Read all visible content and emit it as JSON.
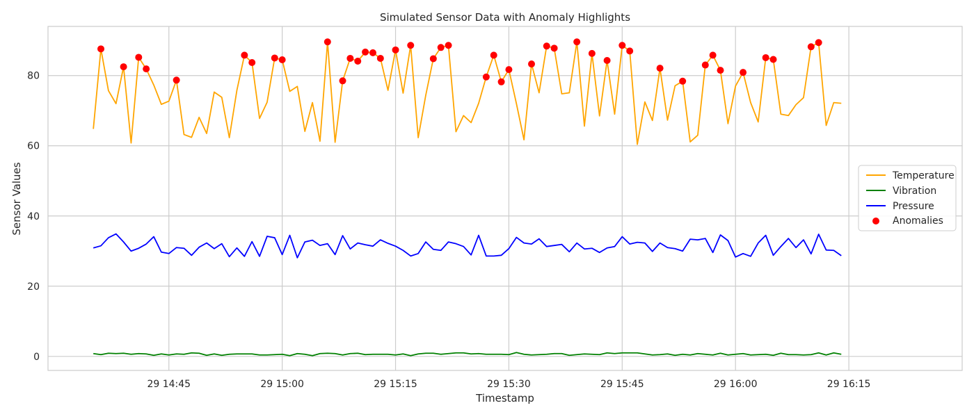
{
  "chart_data": {
    "type": "line",
    "title": "Simulated Sensor Data with Anomaly Highlights",
    "xlabel": "Timestamp",
    "ylabel": "Sensor Values",
    "x_start": "29 14:35",
    "x_step_minutes": 1,
    "x_range": [
      "29 14:29",
      "29 16:30"
    ],
    "ylim": [
      -4,
      94
    ],
    "grid": true,
    "legend_position": "center-right",
    "x_ticks": [
      {
        "label": "29 14:45",
        "minutes": 10
      },
      {
        "label": "29 15:00",
        "minutes": 25
      },
      {
        "label": "29 15:15",
        "minutes": 40
      },
      {
        "label": "29 15:30",
        "minutes": 55
      },
      {
        "label": "29 15:45",
        "minutes": 70
      },
      {
        "label": "29 16:00",
        "minutes": 85
      },
      {
        "label": "29 16:15",
        "minutes": 100
      }
    ],
    "y_ticks": [
      0,
      20,
      40,
      60,
      80
    ],
    "series": [
      {
        "name": "Temperature",
        "color": "#ffa500",
        "values": [
          64.8,
          87.6,
          75.7,
          72.0,
          82.5,
          60.8,
          85.2,
          81.9,
          77.3,
          71.8,
          72.7,
          78.7,
          63.2,
          62.4,
          68.1,
          63.5,
          75.3,
          73.8,
          62.3,
          75.8,
          85.8,
          83.7,
          67.8,
          72.4,
          85.0,
          84.5,
          75.5,
          76.9,
          64.1,
          72.3,
          61.3,
          89.6,
          61.0,
          78.5,
          84.9,
          84.1,
          86.7,
          86.5,
          84.9,
          75.8,
          87.3,
          75.0,
          88.6,
          62.3,
          74.4,
          84.8,
          88.0,
          88.6,
          64.0,
          68.6,
          66.6,
          72.1,
          79.6,
          85.8,
          78.2,
          81.7,
          72.0,
          61.7,
          83.3,
          75.1,
          88.4,
          87.8,
          74.8,
          75.1,
          89.6,
          65.6,
          86.3,
          68.5,
          84.3,
          69.0,
          88.6,
          87.0,
          60.4,
          72.5,
          67.2,
          82.1,
          67.3,
          77.1,
          78.4,
          61.1,
          63.0,
          83.0,
          85.8,
          81.5,
          66.3,
          77.0,
          80.9,
          72.3,
          66.8,
          85.1,
          84.6,
          69.0,
          68.6,
          71.7,
          73.7,
          88.2,
          89.4,
          65.8,
          72.3,
          72.1
        ]
      },
      {
        "name": "Vibration",
        "color": "#008000",
        "values": [
          0.8,
          0.5,
          0.9,
          0.8,
          0.9,
          0.6,
          0.8,
          0.7,
          0.3,
          0.7,
          0.4,
          0.7,
          0.6,
          1.0,
          0.9,
          0.3,
          0.7,
          0.3,
          0.6,
          0.7,
          0.7,
          0.7,
          0.4,
          0.4,
          0.5,
          0.6,
          0.2,
          0.8,
          0.6,
          0.2,
          0.8,
          0.9,
          0.8,
          0.4,
          0.8,
          0.9,
          0.5,
          0.6,
          0.6,
          0.6,
          0.4,
          0.7,
          0.2,
          0.7,
          0.9,
          0.9,
          0.6,
          0.8,
          1.0,
          1.0,
          0.7,
          0.8,
          0.6,
          0.6,
          0.6,
          0.5,
          1.1,
          0.6,
          0.4,
          0.5,
          0.6,
          0.8,
          0.8,
          0.3,
          0.5,
          0.7,
          0.6,
          0.5,
          1.0,
          0.8,
          1.0,
          1.0,
          1.0,
          0.7,
          0.4,
          0.5,
          0.7,
          0.3,
          0.6,
          0.4,
          0.8,
          0.6,
          0.4,
          0.9,
          0.4,
          0.6,
          0.8,
          0.4,
          0.5,
          0.6,
          0.3,
          0.9,
          0.5,
          0.5,
          0.4,
          0.5,
          1.0,
          0.4,
          1.0,
          0.6
        ]
      },
      {
        "name": "Pressure",
        "color": "#0000ff",
        "values": [
          30.9,
          31.5,
          33.8,
          34.9,
          32.6,
          30.0,
          30.8,
          32.0,
          34.1,
          29.7,
          29.3,
          31.0,
          30.8,
          28.8,
          31.1,
          32.3,
          30.7,
          32.1,
          28.4,
          30.9,
          28.5,
          32.7,
          28.5,
          34.2,
          33.8,
          29.0,
          34.5,
          28.1,
          32.6,
          33.1,
          31.6,
          32.1,
          29.0,
          34.4,
          30.6,
          32.3,
          31.8,
          31.4,
          33.2,
          32.2,
          31.4,
          30.2,
          28.6,
          29.3,
          32.6,
          30.5,
          30.2,
          32.6,
          32.1,
          31.3,
          28.9,
          34.5,
          28.6,
          28.6,
          28.8,
          30.7,
          33.9,
          32.3,
          32.0,
          33.5,
          31.3,
          31.6,
          31.9,
          29.8,
          32.3,
          30.6,
          30.8,
          29.6,
          30.9,
          31.3,
          34.1,
          32.0,
          32.5,
          32.3,
          29.9,
          32.3,
          31.0,
          30.7,
          30.0,
          33.4,
          33.2,
          33.6,
          29.6,
          34.6,
          33.0,
          28.3,
          29.3,
          28.5,
          32.3,
          34.5,
          28.8,
          31.3,
          33.6,
          31.0,
          33.2,
          29.2,
          34.8,
          30.3,
          30.2,
          28.7
        ]
      }
    ],
    "anomalies": {
      "name": "Anomalies",
      "color": "#ff0000",
      "points": [
        {
          "i": 1,
          "y": 87.6
        },
        {
          "i": 4,
          "y": 82.5
        },
        {
          "i": 6,
          "y": 85.2
        },
        {
          "i": 7,
          "y": 81.9
        },
        {
          "i": 11,
          "y": 78.7
        },
        {
          "i": 20,
          "y": 85.8
        },
        {
          "i": 21,
          "y": 83.7
        },
        {
          "i": 24,
          "y": 85.0
        },
        {
          "i": 25,
          "y": 84.5
        },
        {
          "i": 31,
          "y": 89.6
        },
        {
          "i": 33,
          "y": 78.5
        },
        {
          "i": 34,
          "y": 84.9
        },
        {
          "i": 35,
          "y": 84.1
        },
        {
          "i": 36,
          "y": 86.7
        },
        {
          "i": 37,
          "y": 86.5
        },
        {
          "i": 38,
          "y": 84.9
        },
        {
          "i": 40,
          "y": 87.3
        },
        {
          "i": 42,
          "y": 88.6
        },
        {
          "i": 45,
          "y": 84.8
        },
        {
          "i": 46,
          "y": 88.0
        },
        {
          "i": 47,
          "y": 88.6
        },
        {
          "i": 52,
          "y": 79.6
        },
        {
          "i": 53,
          "y": 85.8
        },
        {
          "i": 54,
          "y": 78.2
        },
        {
          "i": 55,
          "y": 81.7
        },
        {
          "i": 58,
          "y": 83.3
        },
        {
          "i": 60,
          "y": 88.4
        },
        {
          "i": 61,
          "y": 87.8
        },
        {
          "i": 64,
          "y": 89.6
        },
        {
          "i": 66,
          "y": 86.3
        },
        {
          "i": 68,
          "y": 84.3
        },
        {
          "i": 70,
          "y": 88.6
        },
        {
          "i": 71,
          "y": 87.0
        },
        {
          "i": 75,
          "y": 82.1
        },
        {
          "i": 78,
          "y": 78.4
        },
        {
          "i": 81,
          "y": 83.0
        },
        {
          "i": 82,
          "y": 85.8
        },
        {
          "i": 83,
          "y": 81.5
        },
        {
          "i": 86,
          "y": 80.9
        },
        {
          "i": 89,
          "y": 85.1
        },
        {
          "i": 90,
          "y": 84.6
        },
        {
          "i": 95,
          "y": 88.2
        },
        {
          "i": 96,
          "y": 89.4
        }
      ]
    }
  }
}
